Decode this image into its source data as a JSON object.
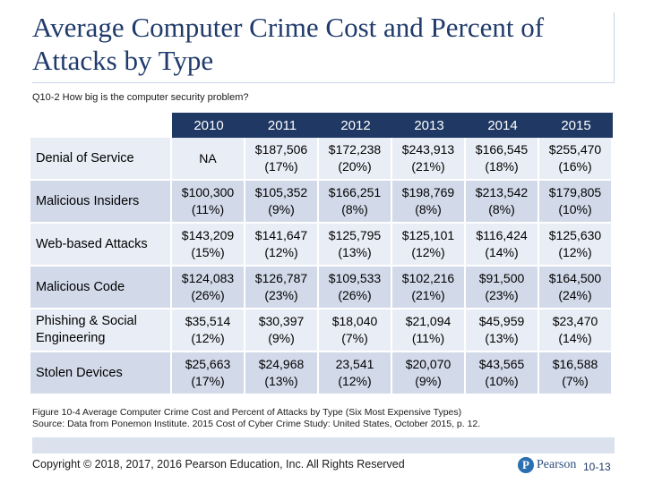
{
  "slide": {
    "title": "Average Computer Crime Cost and Percent of Attacks by Type",
    "subtitle": "Q10-2 How big is the computer security problem?"
  },
  "table": {
    "headers": [
      "2010",
      "2011",
      "2012",
      "2013",
      "2014",
      "2015"
    ],
    "rows": [
      {
        "label": "Denial of Service",
        "cells": [
          {
            "amount": "NA",
            "pct": ""
          },
          {
            "amount": "$187,506",
            "pct": "(17%)"
          },
          {
            "amount": "$172,238",
            "pct": "(20%)"
          },
          {
            "amount": "$243,913",
            "pct": "(21%)"
          },
          {
            "amount": "$166,545",
            "pct": "(18%)"
          },
          {
            "amount": "$255,470",
            "pct": "(16%)"
          }
        ]
      },
      {
        "label": "Malicious Insiders",
        "cells": [
          {
            "amount": "$100,300",
            "pct": "(11%)"
          },
          {
            "amount": "$105,352",
            "pct": "(9%)"
          },
          {
            "amount": "$166,251",
            "pct": "(8%)"
          },
          {
            "amount": "$198,769",
            "pct": "(8%)"
          },
          {
            "amount": "$213,542",
            "pct": "(8%)"
          },
          {
            "amount": "$179,805",
            "pct": "(10%)"
          }
        ]
      },
      {
        "label": "Web-based Attacks",
        "cells": [
          {
            "amount": "$143,209",
            "pct": "(15%)"
          },
          {
            "amount": "$141,647",
            "pct": "(12%)"
          },
          {
            "amount": "$125,795",
            "pct": "(13%)"
          },
          {
            "amount": "$125,101",
            "pct": "(12%)"
          },
          {
            "amount": "$116,424",
            "pct": "(14%)"
          },
          {
            "amount": "$125,630",
            "pct": "(12%)"
          }
        ]
      },
      {
        "label": "Malicious Code",
        "cells": [
          {
            "amount": "$124,083",
            "pct": "(26%)"
          },
          {
            "amount": "$126,787",
            "pct": "(23%)"
          },
          {
            "amount": "$109,533",
            "pct": "(26%)"
          },
          {
            "amount": "$102,216",
            "pct": "(21%)"
          },
          {
            "amount": "$91,500",
            "pct": "(23%)"
          },
          {
            "amount": "$164,500",
            "pct": "(24%)"
          }
        ]
      },
      {
        "label": "Phishing & Social Engineering",
        "cells": [
          {
            "amount": "$35,514",
            "pct": "(12%)"
          },
          {
            "amount": "$30,397",
            "pct": "(9%)"
          },
          {
            "amount": "$18,040",
            "pct": "(7%)"
          },
          {
            "amount": "$21,094",
            "pct": "(11%)"
          },
          {
            "amount": "$45,959",
            "pct": "(13%)"
          },
          {
            "amount": "$23,470",
            "pct": "(14%)"
          }
        ]
      },
      {
        "label": "Stolen Devices",
        "cells": [
          {
            "amount": "$25,663",
            "pct": "(17%)"
          },
          {
            "amount": "$24,968",
            "pct": "(13%)"
          },
          {
            "amount": "23,541",
            "pct": "(12%)"
          },
          {
            "amount": "$20,070",
            "pct": "(9%)"
          },
          {
            "amount": "$43,565",
            "pct": "(10%)"
          },
          {
            "amount": "$16,588",
            "pct": "(7%)"
          }
        ]
      }
    ]
  },
  "caption": {
    "line1": "Figure 10-4 Average Computer Crime Cost and Percent of Attacks by Type (Six Most Expensive Types)",
    "line2": "Source: Data from Ponemon Institute. 2015 Cost of Cyber Crime Study: United States, October 2015, p. 12."
  },
  "footer": {
    "copyright": "Copyright © 2018, 2017, 2016 Pearson Education, Inc. All Rights Reserved",
    "logo_mark": "P",
    "logo_word": "Pearson",
    "page_number": "10-13"
  },
  "colors": {
    "title": "#1f3a6b",
    "header_bg": "#1f3864",
    "row_light": "#e9edf5",
    "row_dark": "#d2daea"
  }
}
